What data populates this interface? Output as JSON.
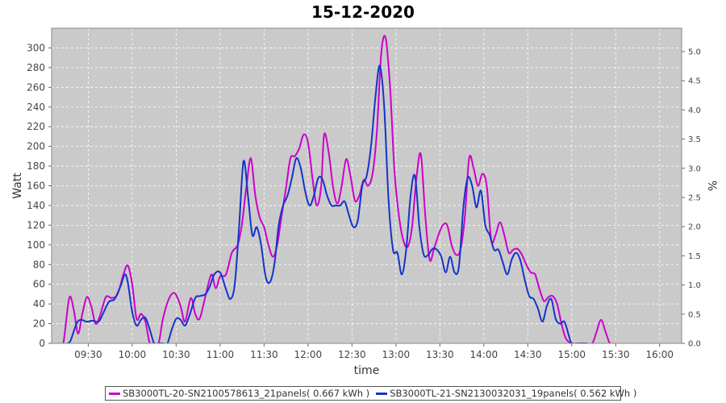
{
  "chart_data": {
    "type": "line",
    "title": "15-12-2020",
    "xlabel": "time",
    "ylabel": "Watt",
    "y2label": "%",
    "ylim": [
      0,
      320
    ],
    "y2lim": [
      0,
      5.4
    ],
    "xlim": [
      "09:05",
      "16:15"
    ],
    "grid": true,
    "legend_position": "bottom",
    "x_ticks": [
      "09:30",
      "10:00",
      "10:30",
      "11:00",
      "11:30",
      "12:00",
      "12:30",
      "13:00",
      "13:30",
      "14:00",
      "14:30",
      "15:00",
      "15:30",
      "16:00"
    ],
    "y_ticks": [
      0,
      20,
      40,
      60,
      80,
      100,
      120,
      140,
      160,
      180,
      200,
      220,
      240,
      260,
      280,
      300
    ],
    "y2_ticks": [
      "0.0",
      "0.5",
      "1.0",
      "1.5",
      "2.0",
      "2.5",
      "3.0",
      "3.5",
      "4.0",
      "4.5",
      "5.0"
    ],
    "colors": {
      "background": "#cacaca",
      "grid": "#ffffff"
    },
    "series": [
      {
        "name": "SB3000TL-20-SN2100578613_21panels( 0.667 kWh )",
        "color": "#cc00cc",
        "points": [
          [
            "09:10",
            0
          ],
          [
            "09:13",
            0
          ],
          [
            "09:17",
            46
          ],
          [
            "09:20",
            35
          ],
          [
            "09:23",
            10
          ],
          [
            "09:26",
            30
          ],
          [
            "09:29",
            47
          ],
          [
            "09:32",
            38
          ],
          [
            "09:35",
            20
          ],
          [
            "09:38",
            28
          ],
          [
            "09:42",
            47
          ],
          [
            "09:46",
            46
          ],
          [
            "09:50",
            50
          ],
          [
            "09:54",
            70
          ],
          [
            "09:57",
            79
          ],
          [
            "10:00",
            60
          ],
          [
            "10:03",
            25
          ],
          [
            "10:06",
            30
          ],
          [
            "10:09",
            22
          ],
          [
            "10:12",
            0
          ],
          [
            "10:15",
            0
          ],
          [
            "10:18",
            0
          ],
          [
            "10:21",
            25
          ],
          [
            "10:25",
            45
          ],
          [
            "10:29",
            51
          ],
          [
            "10:33",
            38
          ],
          [
            "10:36",
            22
          ],
          [
            "10:40",
            46
          ],
          [
            "10:43",
            30
          ],
          [
            "10:46",
            25
          ],
          [
            "10:50",
            48
          ],
          [
            "10:54",
            70
          ],
          [
            "10:57",
            56
          ],
          [
            "11:00",
            68
          ],
          [
            "11:04",
            70
          ],
          [
            "11:08",
            92
          ],
          [
            "11:12",
            100
          ],
          [
            "11:15",
            122
          ],
          [
            "11:18",
            160
          ],
          [
            "11:21",
            188
          ],
          [
            "11:24",
            150
          ],
          [
            "11:27",
            128
          ],
          [
            "11:30",
            118
          ],
          [
            "11:33",
            100
          ],
          [
            "11:36",
            88
          ],
          [
            "11:39",
            100
          ],
          [
            "11:42",
            130
          ],
          [
            "11:45",
            158
          ],
          [
            "11:48",
            188
          ],
          [
            "11:51",
            190
          ],
          [
            "11:54",
            198
          ],
          [
            "11:57",
            212
          ],
          [
            "12:00",
            204
          ],
          [
            "12:03",
            168
          ],
          [
            "12:06",
            140
          ],
          [
            "12:09",
            160
          ],
          [
            "12:11",
            212
          ],
          [
            "12:14",
            195
          ],
          [
            "12:17",
            160
          ],
          [
            "12:20",
            142
          ],
          [
            "12:23",
            160
          ],
          [
            "12:26",
            187
          ],
          [
            "12:29",
            170
          ],
          [
            "12:32",
            145
          ],
          [
            "12:35",
            150
          ],
          [
            "12:38",
            166
          ],
          [
            "12:41",
            160
          ],
          [
            "12:44",
            172
          ],
          [
            "12:47",
            215
          ],
          [
            "12:50",
            295
          ],
          [
            "12:53",
            310
          ],
          [
            "12:56",
            260
          ],
          [
            "12:59",
            175
          ],
          [
            "13:02",
            130
          ],
          [
            "13:05",
            105
          ],
          [
            "13:08",
            98
          ],
          [
            "13:11",
            118
          ],
          [
            "13:14",
            168
          ],
          [
            "13:17",
            192
          ],
          [
            "13:20",
            130
          ],
          [
            "13:23",
            85
          ],
          [
            "13:26",
            96
          ],
          [
            "13:29",
            110
          ],
          [
            "13:32",
            120
          ],
          [
            "13:35",
            120
          ],
          [
            "13:38",
            100
          ],
          [
            "13:41",
            90
          ],
          [
            "13:44",
            95
          ],
          [
            "13:47",
            128
          ],
          [
            "13:50",
            188
          ],
          [
            "13:53",
            178
          ],
          [
            "13:56",
            160
          ],
          [
            "13:59",
            172
          ],
          [
            "14:02",
            160
          ],
          [
            "14:05",
            105
          ],
          [
            "14:08",
            110
          ],
          [
            "14:11",
            123
          ],
          [
            "14:14",
            110
          ],
          [
            "14:17",
            92
          ],
          [
            "14:20",
            95
          ],
          [
            "14:23",
            96
          ],
          [
            "14:26",
            90
          ],
          [
            "14:29",
            80
          ],
          [
            "14:32",
            72
          ],
          [
            "14:35",
            70
          ],
          [
            "14:38",
            55
          ],
          [
            "14:41",
            43
          ],
          [
            "14:44",
            47
          ],
          [
            "14:47",
            48
          ],
          [
            "14:50",
            40
          ],
          [
            "14:53",
            20
          ],
          [
            "14:56",
            5
          ],
          [
            "15:00",
            0
          ],
          [
            "15:05",
            0
          ],
          [
            "15:10",
            0
          ],
          [
            "15:14",
            0
          ],
          [
            "15:17",
            12
          ],
          [
            "15:20",
            24
          ],
          [
            "15:23",
            12
          ],
          [
            "15:26",
            0
          ],
          [
            "15:29",
            0
          ]
        ]
      },
      {
        "name": "SB3000TL-21-SN2130032031_19panels( 0.562 kWh )",
        "color": "#1433cc",
        "points": [
          [
            "09:16",
            0
          ],
          [
            "09:18",
            3
          ],
          [
            "09:22",
            20
          ],
          [
            "09:25",
            24
          ],
          [
            "09:29",
            22
          ],
          [
            "09:33",
            23
          ],
          [
            "09:37",
            22
          ],
          [
            "09:40",
            30
          ],
          [
            "09:44",
            42
          ],
          [
            "09:48",
            45
          ],
          [
            "09:52",
            58
          ],
          [
            "09:55",
            70
          ],
          [
            "09:57",
            62
          ],
          [
            "10:00",
            32
          ],
          [
            "10:03",
            18
          ],
          [
            "10:06",
            24
          ],
          [
            "10:09",
            26
          ],
          [
            "10:12",
            14
          ],
          [
            "10:15",
            0
          ],
          [
            "10:18",
            0
          ],
          [
            "10:21",
            0
          ],
          [
            "10:24",
            0
          ],
          [
            "10:27",
            14
          ],
          [
            "10:30",
            25
          ],
          [
            "10:33",
            24
          ],
          [
            "10:36",
            18
          ],
          [
            "10:39",
            28
          ],
          [
            "10:43",
            46
          ],
          [
            "10:46",
            48
          ],
          [
            "10:50",
            50
          ],
          [
            "10:53",
            58
          ],
          [
            "10:56",
            70
          ],
          [
            "11:00",
            72
          ],
          [
            "11:04",
            55
          ],
          [
            "11:07",
            45
          ],
          [
            "11:10",
            60
          ],
          [
            "11:13",
            120
          ],
          [
            "11:16",
            185
          ],
          [
            "11:19",
            150
          ],
          [
            "11:22",
            110
          ],
          [
            "11:25",
            118
          ],
          [
            "11:28",
            100
          ],
          [
            "11:31",
            68
          ],
          [
            "11:34",
            62
          ],
          [
            "11:37",
            80
          ],
          [
            "11:40",
            120
          ],
          [
            "11:43",
            140
          ],
          [
            "11:46",
            150
          ],
          [
            "11:49",
            168
          ],
          [
            "11:52",
            188
          ],
          [
            "11:55",
            178
          ],
          [
            "11:58",
            155
          ],
          [
            "12:01",
            140
          ],
          [
            "12:04",
            150
          ],
          [
            "12:07",
            168
          ],
          [
            "12:10",
            166
          ],
          [
            "12:13",
            150
          ],
          [
            "12:16",
            140
          ],
          [
            "12:19",
            140
          ],
          [
            "12:22",
            140
          ],
          [
            "12:25",
            144
          ],
          [
            "12:28",
            130
          ],
          [
            "12:31",
            118
          ],
          [
            "12:34",
            125
          ],
          [
            "12:37",
            160
          ],
          [
            "12:40",
            170
          ],
          [
            "12:43",
            200
          ],
          [
            "12:46",
            250
          ],
          [
            "12:49",
            282
          ],
          [
            "12:52",
            240
          ],
          [
            "12:55",
            145
          ],
          [
            "12:58",
            95
          ],
          [
            "13:01",
            92
          ],
          [
            "13:04",
            70
          ],
          [
            "13:07",
            95
          ],
          [
            "13:10",
            150
          ],
          [
            "13:13",
            170
          ],
          [
            "13:16",
            118
          ],
          [
            "13:19",
            90
          ],
          [
            "13:22",
            90
          ],
          [
            "13:25",
            96
          ],
          [
            "13:28",
            95
          ],
          [
            "13:31",
            88
          ],
          [
            "13:34",
            72
          ],
          [
            "13:37",
            88
          ],
          [
            "13:40",
            72
          ],
          [
            "13:43",
            78
          ],
          [
            "13:46",
            138
          ],
          [
            "13:49",
            168
          ],
          [
            "13:52",
            160
          ],
          [
            "13:55",
            138
          ],
          [
            "13:58",
            155
          ],
          [
            "14:01",
            120
          ],
          [
            "14:04",
            110
          ],
          [
            "14:07",
            95
          ],
          [
            "14:10",
            95
          ],
          [
            "14:13",
            82
          ],
          [
            "14:16",
            70
          ],
          [
            "14:19",
            85
          ],
          [
            "14:22",
            92
          ],
          [
            "14:25",
            84
          ],
          [
            "14:28",
            64
          ],
          [
            "14:31",
            48
          ],
          [
            "14:34",
            45
          ],
          [
            "14:37",
            35
          ],
          [
            "14:40",
            22
          ],
          [
            "14:43",
            38
          ],
          [
            "14:46",
            45
          ],
          [
            "14:49",
            25
          ],
          [
            "14:52",
            20
          ],
          [
            "14:55",
            22
          ],
          [
            "14:58",
            8
          ],
          [
            "15:00",
            0
          ],
          [
            "15:05",
            0
          ],
          [
            "15:10",
            0
          ]
        ]
      }
    ]
  }
}
